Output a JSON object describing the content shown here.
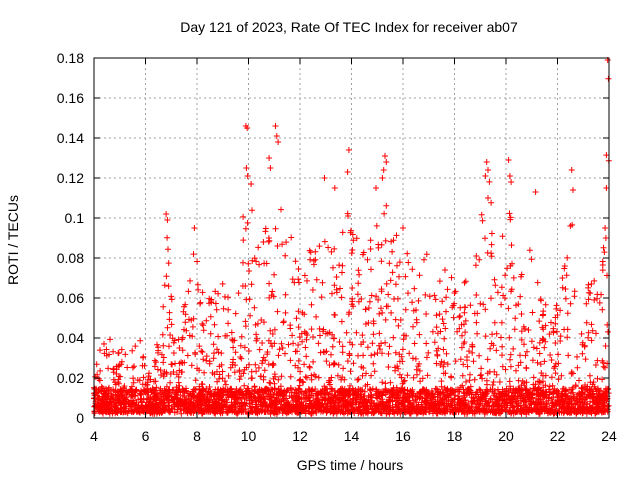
{
  "chart_data": {
    "type": "scatter",
    "title": "Day 121 of 2023, Rate Of TEC Index for receiver ab07",
    "xlabel": "GPS time / hours",
    "ylabel": "ROTI / TECUs",
    "xlim": [
      4,
      24
    ],
    "ylim": [
      0,
      0.18
    ],
    "x_ticks": [
      4,
      6,
      8,
      10,
      12,
      14,
      16,
      18,
      20,
      22,
      24
    ],
    "y_ticks": [
      0,
      0.02,
      0.04,
      0.06,
      0.08,
      0.1,
      0.12,
      0.14,
      0.16,
      0.18
    ],
    "x_tick_labels": [
      "4",
      "6",
      "8",
      "10",
      "12",
      "14",
      "16",
      "18",
      "20",
      "22",
      "24"
    ],
    "y_tick_labels": [
      "0",
      "0.02",
      "0.04",
      "0.06",
      "0.08",
      "0.1",
      "0.12",
      "0.14",
      "0.16",
      "0.18"
    ],
    "grid": true,
    "marker": "+",
    "series_color": "#ff0000",
    "baseline_level": 0.008,
    "envelope": [
      [
        4.0,
        0.02
      ],
      [
        4.3,
        0.035
      ],
      [
        4.5,
        0.045
      ],
      [
        4.8,
        0.03
      ],
      [
        5.0,
        0.035
      ],
      [
        5.4,
        0.03
      ],
      [
        5.8,
        0.04
      ],
      [
        6.0,
        0.02
      ],
      [
        6.4,
        0.03
      ],
      [
        6.7,
        0.055
      ],
      [
        6.8,
        0.1
      ],
      [
        7.0,
        0.06
      ],
      [
        7.3,
        0.055
      ],
      [
        7.6,
        0.06
      ],
      [
        7.9,
        0.09
      ],
      [
        8.2,
        0.06
      ],
      [
        8.6,
        0.06
      ],
      [
        9.0,
        0.065
      ],
      [
        9.3,
        0.06
      ],
      [
        9.6,
        0.07
      ],
      [
        9.9,
        0.12
      ],
      [
        10.0,
        0.145
      ],
      [
        10.3,
        0.09
      ],
      [
        10.6,
        0.09
      ],
      [
        10.8,
        0.1
      ],
      [
        11.0,
        0.08
      ],
      [
        11.1,
        0.14
      ],
      [
        11.4,
        0.085
      ],
      [
        11.8,
        0.09
      ],
      [
        12.0,
        0.07
      ],
      [
        12.3,
        0.085
      ],
      [
        12.7,
        0.09
      ],
      [
        13.0,
        0.1
      ],
      [
        13.2,
        0.08
      ],
      [
        13.5,
        0.1
      ],
      [
        13.8,
        0.125
      ],
      [
        14.0,
        0.1
      ],
      [
        14.3,
        0.09
      ],
      [
        14.7,
        0.085
      ],
      [
        15.0,
        0.1
      ],
      [
        15.3,
        0.13
      ],
      [
        15.6,
        0.09
      ],
      [
        16.0,
        0.095
      ],
      [
        16.4,
        0.08
      ],
      [
        16.8,
        0.085
      ],
      [
        17.2,
        0.075
      ],
      [
        17.6,
        0.07
      ],
      [
        17.9,
        0.08
      ],
      [
        18.2,
        0.06
      ],
      [
        18.6,
        0.075
      ],
      [
        19.0,
        0.095
      ],
      [
        19.3,
        0.125
      ],
      [
        19.6,
        0.085
      ],
      [
        19.9,
        0.09
      ],
      [
        20.1,
        0.125
      ],
      [
        20.4,
        0.07
      ],
      [
        20.8,
        0.07
      ],
      [
        21.1,
        0.1
      ],
      [
        21.4,
        0.06
      ],
      [
        21.8,
        0.06
      ],
      [
        22.1,
        0.055
      ],
      [
        22.5,
        0.12
      ],
      [
        22.8,
        0.07
      ],
      [
        23.2,
        0.065
      ],
      [
        23.5,
        0.08
      ],
      [
        23.8,
        0.1
      ],
      [
        24.0,
        0.18
      ]
    ],
    "highlights": [
      [
        6.8,
        0.102
      ],
      [
        6.85,
        0.099
      ],
      [
        7.9,
        0.095
      ],
      [
        9.9,
        0.146
      ],
      [
        9.95,
        0.145
      ],
      [
        9.92,
        0.125
      ],
      [
        9.97,
        0.121
      ],
      [
        10.1,
        0.117
      ],
      [
        11.05,
        0.146
      ],
      [
        11.1,
        0.141
      ],
      [
        11.15,
        0.138
      ],
      [
        10.8,
        0.13
      ],
      [
        10.85,
        0.125
      ],
      [
        13.9,
        0.134
      ],
      [
        13.85,
        0.123
      ],
      [
        15.3,
        0.131
      ],
      [
        15.35,
        0.128
      ],
      [
        15.25,
        0.124
      ],
      [
        15.2,
        0.12
      ],
      [
        19.25,
        0.128
      ],
      [
        19.3,
        0.124
      ],
      [
        19.2,
        0.121
      ],
      [
        19.3,
        0.11
      ],
      [
        20.1,
        0.129
      ],
      [
        20.15,
        0.121
      ],
      [
        20.2,
        0.118
      ],
      [
        21.15,
        0.113
      ],
      [
        22.55,
        0.124
      ],
      [
        22.6,
        0.114
      ],
      [
        22.5,
        0.096
      ],
      [
        23.95,
        0.179
      ],
      [
        23.9,
        0.115
      ],
      [
        23.85,
        0.095
      ],
      [
        23.88,
        0.09
      ],
      [
        12.95,
        0.12
      ],
      [
        13.35,
        0.115
      ],
      [
        16.0,
        0.095
      ],
      [
        14.95,
        0.115
      ]
    ]
  }
}
